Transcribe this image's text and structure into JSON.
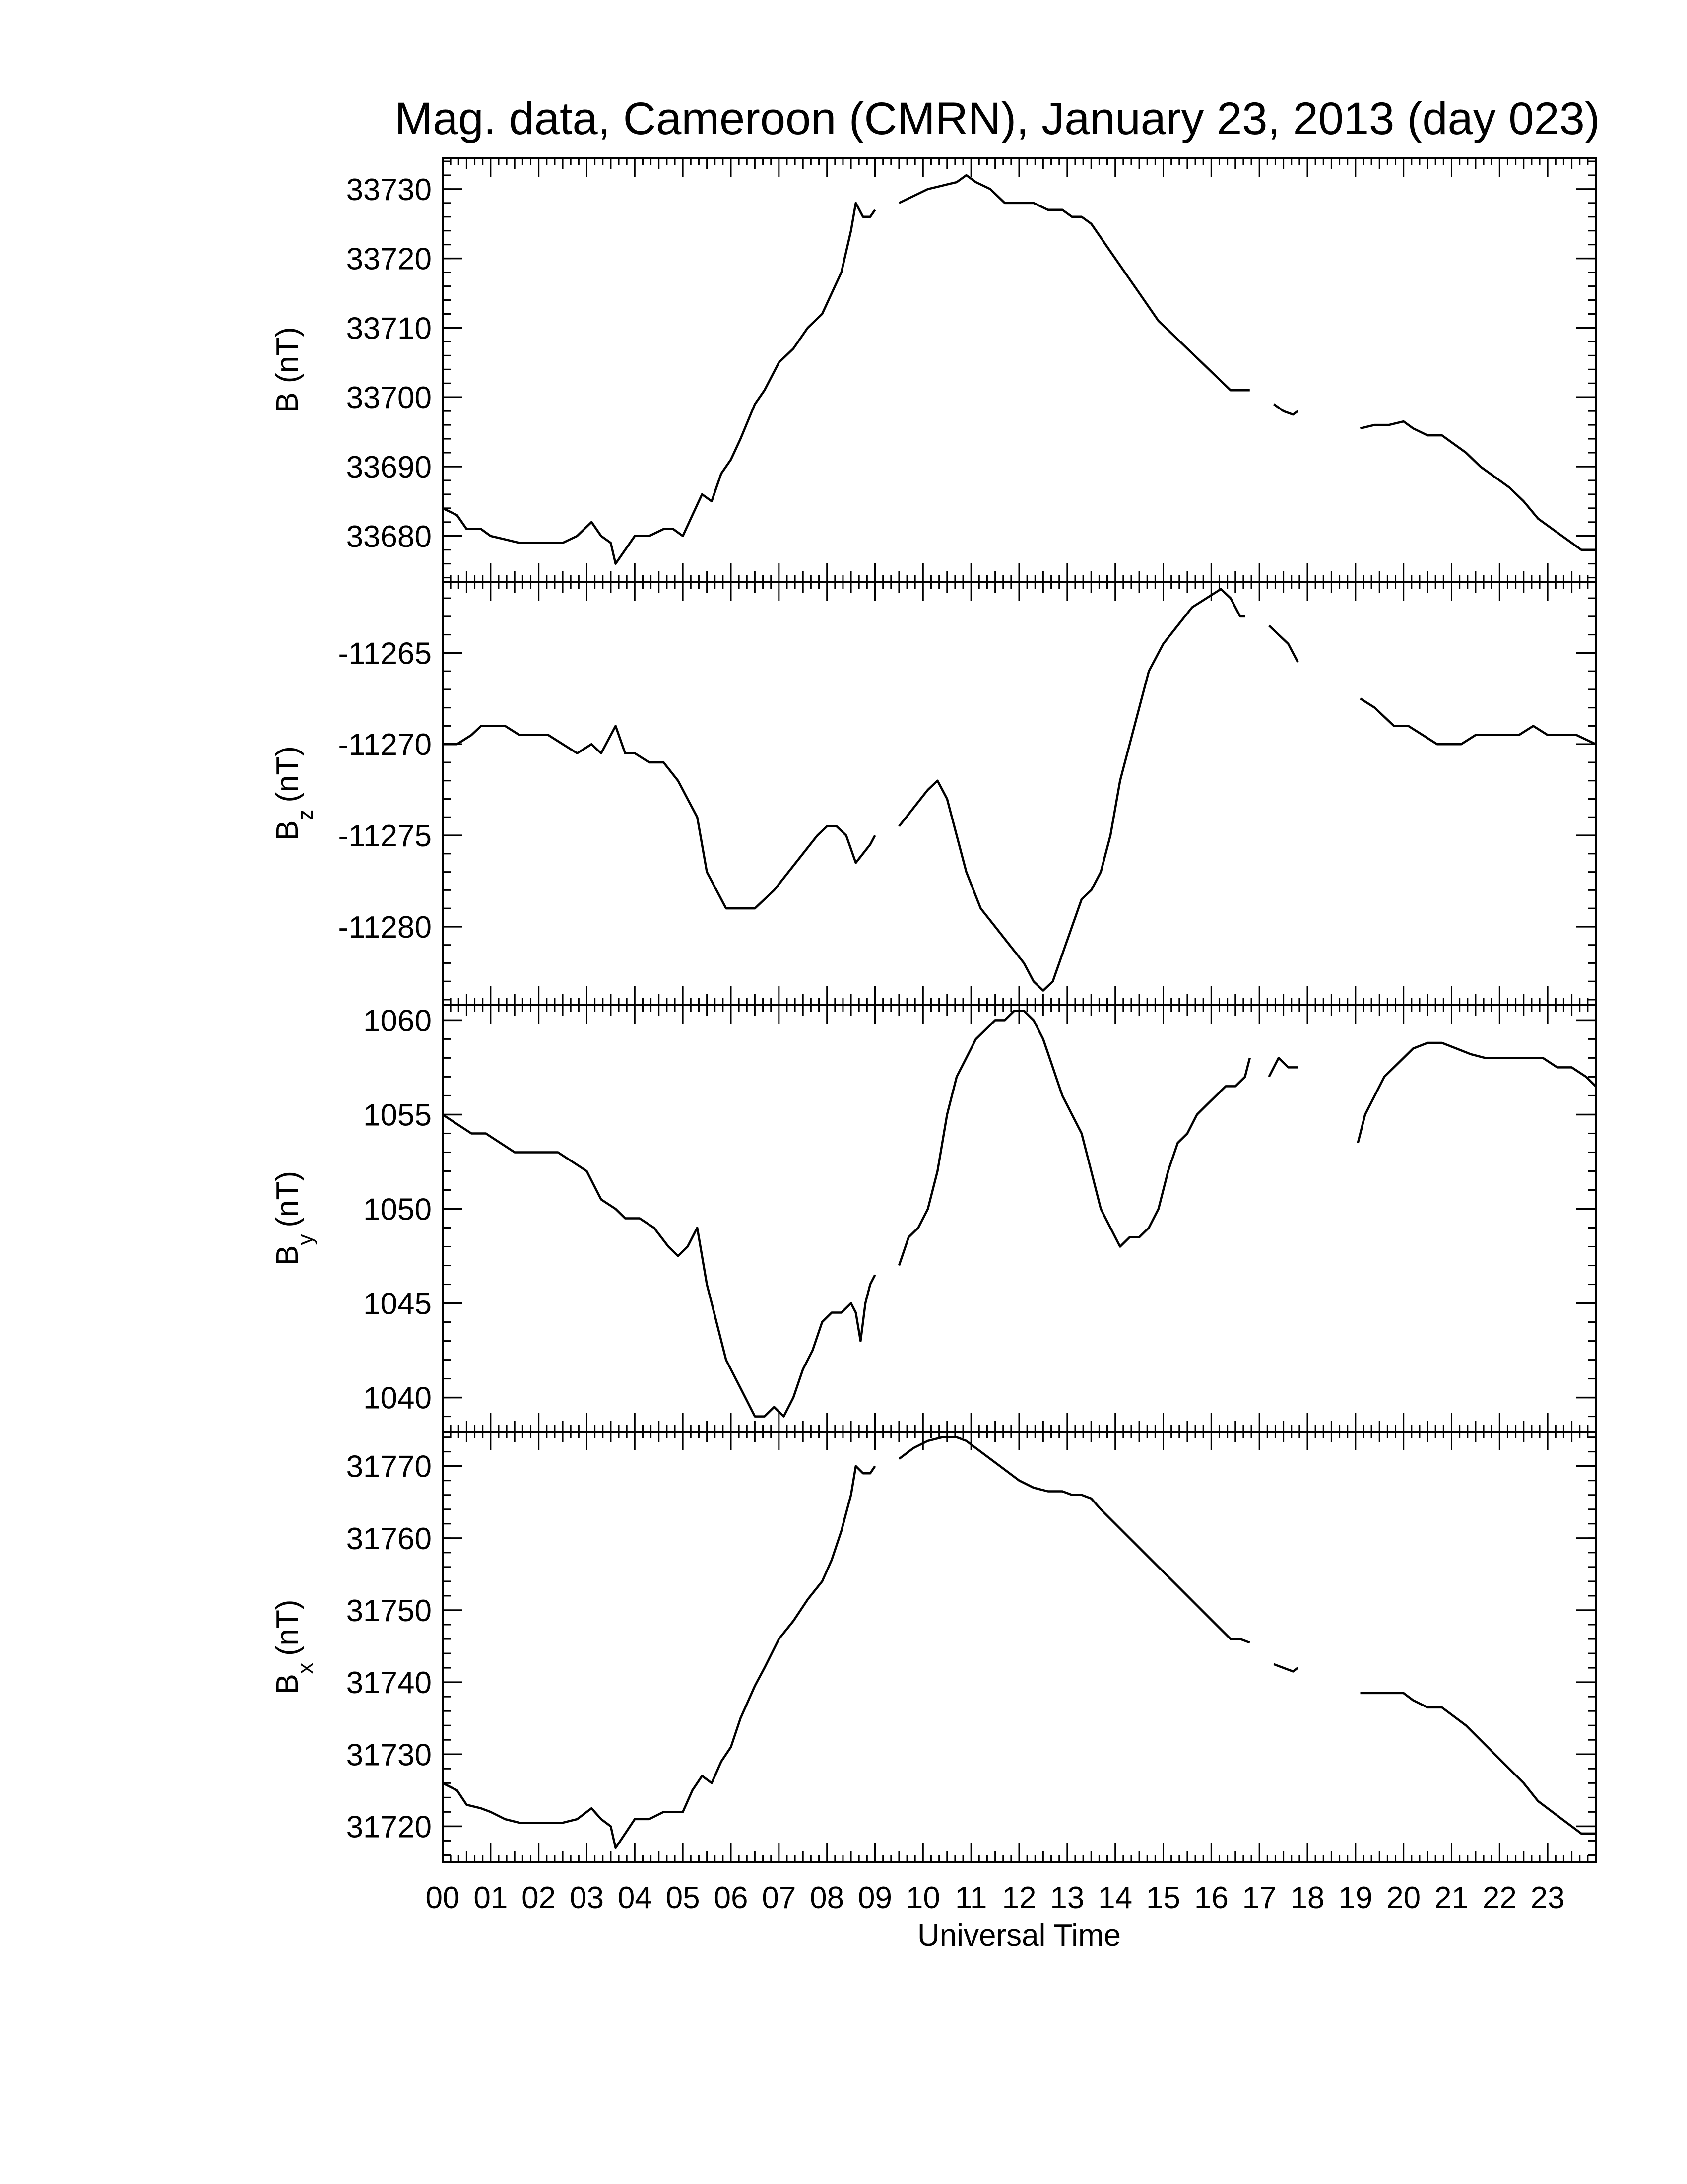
{
  "chart_data": {
    "type": "line",
    "title": "Mag. data, Cameroon (CMRN), January 23, 2013 (day 023)",
    "xlabel": "Universal Time",
    "x_ticks": [
      "00",
      "01",
      "02",
      "03",
      "04",
      "05",
      "06",
      "07",
      "08",
      "09",
      "10",
      "11",
      "12",
      "13",
      "14",
      "15",
      "16",
      "17",
      "18",
      "19",
      "20",
      "21",
      "22",
      "23"
    ],
    "xlim": [
      0,
      24
    ],
    "x_unit": "hours UT",
    "grid": false,
    "legend": "none",
    "panels": [
      {
        "ylabel_main": "B",
        "ylabel_sub": "",
        "ylabel_unit": "(nT)",
        "ylim": [
          33673.4,
          33734.5
        ],
        "y_ticks": [
          33680,
          33690,
          33700,
          33710,
          33720,
          33730
        ],
        "series": [
          {
            "x": [
              0,
              0.3,
              0.5,
              0.8,
              1.0,
              1.3,
              1.6,
              1.9,
              2.2,
              2.5,
              2.8,
              3.1,
              3.3,
              3.5,
              3.6,
              3.8,
              4.0,
              4.3,
              4.6,
              4.8,
              5.0,
              5.2,
              5.4,
              5.6,
              5.8,
              6.0,
              6.2,
              6.5,
              6.7,
              7.0,
              7.3,
              7.6,
              7.9,
              8.1,
              8.3,
              8.5,
              8.6,
              8.75,
              8.9,
              9.0
            ],
            "y": [
              33684,
              33683,
              33681,
              33681,
              33680,
              33679.5,
              33679,
              33679,
              33679,
              33679,
              33680,
              33682,
              33680,
              33679,
              33676,
              33678,
              33680,
              33680,
              33681,
              33681,
              33680,
              33683,
              33686,
              33685,
              33689,
              33691,
              33694,
              33699,
              33701,
              33705,
              33707,
              33710,
              33712,
              33715,
              33718,
              33724,
              33728,
              33726,
              33726,
              33727
            ]
          },
          {
            "x": [
              9.5,
              9.8,
              10.1,
              10.4,
              10.7,
              10.9,
              11.1,
              11.4,
              11.7,
              12.0,
              12.3,
              12.6,
              12.9,
              13.1,
              13.3,
              13.5,
              13.7,
              14.0,
              14.3,
              14.6,
              14.9,
              15.2,
              15.5,
              15.8,
              16.1,
              16.4,
              16.6,
              16.8
            ],
            "y": [
              33728,
              33729,
              33730,
              33730.5,
              33731,
              33732,
              33731,
              33730,
              33728,
              33728,
              33728,
              33727,
              33727,
              33726,
              33726,
              33725,
              33723,
              33720,
              33717,
              33714,
              33711,
              33709,
              33707,
              33705,
              33703,
              33701,
              33701,
              33701
            ]
          },
          {
            "x": [
              17.3,
              17.5,
              17.7,
              17.8
            ],
            "y": [
              33699,
              33698,
              33697.5,
              33698
            ]
          },
          {
            "x": [
              19.1,
              19.4,
              19.7,
              20.0,
              20.2,
              20.5,
              20.8,
              21.0,
              21.3,
              21.6,
              21.9,
              22.2,
              22.5,
              22.8,
              23.1,
              23.4,
              23.7,
              24.0
            ],
            "y": [
              33695.5,
              33696,
              33696,
              33696.5,
              33695.5,
              33694.5,
              33694.5,
              33693.5,
              33692,
              33690,
              33688.5,
              33687,
              33685,
              33682.5,
              33681,
              33679.5,
              33678,
              33678
            ]
          }
        ]
      },
      {
        "ylabel_main": "B",
        "ylabel_sub": "z",
        "ylabel_unit": "(nT)",
        "ylim": [
          -11284.3,
          -11261.1
        ],
        "y_ticks": [
          -11265,
          -11270,
          -11275,
          -11280
        ],
        "series": [
          {
            "x": [
              0,
              0.3,
              0.6,
              0.8,
              1.0,
              1.3,
              1.6,
              1.9,
              2.2,
              2.5,
              2.8,
              3.1,
              3.3,
              3.6,
              3.8,
              4.0,
              4.3,
              4.6,
              4.9,
              5.1,
              5.3,
              5.5,
              5.7,
              5.9,
              6.2,
              6.5,
              6.7,
              6.9,
              7.2,
              7.5,
              7.8,
              8.0,
              8.2,
              8.4,
              8.6,
              8.75,
              8.9,
              9.0
            ],
            "y": [
              -11270,
              -11270,
              -11269.5,
              -11269,
              -11269,
              -11269,
              -11269.5,
              -11269.5,
              -11269.5,
              -11270,
              -11270.5,
              -11270,
              -11270.5,
              -11269,
              -11270.5,
              -11270.5,
              -11271,
              -11271,
              -11272,
              -11273,
              -11274,
              -11277,
              -11278,
              -11279,
              -11279,
              -11279,
              -11278.5,
              -11278,
              -11277,
              -11276,
              -11275,
              -11274.5,
              -11274.5,
              -11275,
              -11276.5,
              -11276,
              -11275.5,
              -11275
            ]
          },
          {
            "x": [
              9.5,
              9.8,
              10.1,
              10.3,
              10.5,
              10.7,
              10.9,
              11.2,
              11.5,
              11.8,
              12.1,
              12.3,
              12.5,
              12.7,
              12.9,
              13.1,
              13.3,
              13.5,
              13.7,
              13.9,
              14.1,
              14.4,
              14.7,
              15.0,
              15.3,
              15.6,
              15.9,
              16.2,
              16.4,
              16.5,
              16.6,
              16.7
            ],
            "y": [
              -11274.5,
              -11273.5,
              -11272.5,
              -11272,
              -11273,
              -11275,
              -11277,
              -11279,
              -11280,
              -11281,
              -11282,
              -11283,
              -11283.5,
              -11283,
              -11281.5,
              -11280,
              -11278.5,
              -11278,
              -11277,
              -11275,
              -11272,
              -11269,
              -11266,
              -11264.5,
              -11263.5,
              -11262.5,
              -11262,
              -11261.5,
              -11262,
              -11262.5,
              -11263,
              -11263
            ]
          },
          {
            "x": [
              17.2,
              17.4,
              17.6,
              17.8
            ],
            "y": [
              -11263.5,
              -11264,
              -11264.5,
              -11265.5
            ]
          },
          {
            "x": [
              19.1,
              19.4,
              19.6,
              19.8,
              20.1,
              20.4,
              20.7,
              20.9,
              21.2,
              21.5,
              21.8,
              22.1,
              22.4,
              22.7,
              23.0,
              23.3,
              23.6,
              24.0
            ],
            "y": [
              -11267.5,
              -11268,
              -11268.5,
              -11269,
              -11269,
              -11269.5,
              -11270,
              -11270,
              -11270,
              -11269.5,
              -11269.5,
              -11269.5,
              -11269.5,
              -11269,
              -11269.5,
              -11269.5,
              -11269.5,
              -11270
            ]
          }
        ]
      },
      {
        "ylabel_main": "B",
        "ylabel_sub": "y",
        "ylabel_unit": "(nT)",
        "ylim": [
          1038.2,
          1060.8
        ],
        "y_ticks": [
          1040,
          1045,
          1050,
          1055,
          1060
        ],
        "series": [
          {
            "x": [
              0,
              0.3,
              0.6,
              0.9,
              1.2,
              1.5,
              1.8,
              2.1,
              2.4,
              2.7,
              3.0,
              3.3,
              3.6,
              3.8,
              4.1,
              4.4,
              4.7,
              4.9,
              5.1,
              5.3,
              5.5,
              5.7,
              5.9,
              6.1,
              6.3,
              6.5,
              6.7,
              6.9,
              7.1,
              7.3,
              7.5,
              7.7,
              7.9,
              8.1,
              8.3,
              8.5,
              8.6,
              8.7,
              8.8,
              8.9,
              9.0
            ],
            "y": [
              1055,
              1054.5,
              1054,
              1054,
              1053.5,
              1053,
              1053,
              1053,
              1053,
              1052.5,
              1052,
              1050.5,
              1050,
              1049.5,
              1049.5,
              1049,
              1048,
              1047.5,
              1048,
              1049,
              1046,
              1044,
              1042,
              1041,
              1040,
              1039,
              1039,
              1039.5,
              1039,
              1040,
              1041.5,
              1042.5,
              1044,
              1044.5,
              1044.5,
              1045,
              1044.5,
              1043,
              1045,
              1046,
              1046.5
            ]
          },
          {
            "x": [
              9.5,
              9.7,
              9.9,
              10.1,
              10.3,
              10.5,
              10.7,
              10.9,
              11.1,
              11.3,
              11.5,
              11.7,
              11.9,
              12.1,
              12.3,
              12.5,
              12.7,
              12.9,
              13.1,
              13.3,
              13.5,
              13.7,
              13.9,
              14.1,
              14.3,
              14.5,
              14.7,
              14.9,
              15.1,
              15.3,
              15.5,
              15.7,
              15.9,
              16.1,
              16.3,
              16.5,
              16.7,
              16.8
            ],
            "y": [
              1047,
              1048.5,
              1049,
              1050,
              1052,
              1055,
              1057,
              1058,
              1059,
              1059.5,
              1060,
              1060,
              1060.5,
              1060.5,
              1060,
              1059,
              1057.5,
              1056,
              1055,
              1054,
              1052,
              1050,
              1049,
              1048,
              1048.5,
              1048.5,
              1049,
              1050,
              1052,
              1053.5,
              1054,
              1055,
              1055.5,
              1056,
              1056.5,
              1056.5,
              1057,
              1058
            ]
          },
          {
            "x": [
              17.2,
              17.4,
              17.6,
              17.8
            ],
            "y": [
              1057,
              1058,
              1057.5,
              1057.5
            ]
          },
          {
            "x": [
              19.05,
              19.2,
              19.4,
              19.6,
              19.8,
              20.0,
              20.2,
              20.5,
              20.8,
              21.1,
              21.4,
              21.7,
              22.0,
              22.3,
              22.6,
              22.9,
              23.2,
              23.5,
              23.8,
              24.0
            ],
            "y": [
              1053.5,
              1055,
              1056,
              1057,
              1057.5,
              1058,
              1058.5,
              1058.8,
              1058.8,
              1058.5,
              1058.2,
              1058,
              1058,
              1058,
              1058,
              1058,
              1057.5,
              1057.5,
              1057,
              1056.5
            ]
          }
        ]
      },
      {
        "ylabel_main": "B",
        "ylabel_sub": "x",
        "ylabel_unit": "(nT)",
        "ylim": [
          31715,
          31774.8
        ],
        "y_ticks": [
          31720,
          31730,
          31740,
          31750,
          31760,
          31770
        ],
        "series": [
          {
            "x": [
              0,
              0.3,
              0.5,
              0.8,
              1.0,
              1.3,
              1.6,
              1.9,
              2.2,
              2.5,
              2.8,
              3.1,
              3.3,
              3.5,
              3.6,
              3.8,
              4.0,
              4.3,
              4.6,
              4.8,
              5.0,
              5.2,
              5.4,
              5.6,
              5.8,
              6.0,
              6.2,
              6.5,
              6.7,
              7.0,
              7.3,
              7.6,
              7.9,
              8.1,
              8.3,
              8.5,
              8.6,
              8.75,
              8.9,
              9.0
            ],
            "y": [
              31726,
              31725,
              31723,
              31722.5,
              31722,
              31721,
              31720.5,
              31720.5,
              31720.5,
              31720.5,
              31721,
              31722.5,
              31721,
              31720,
              31717,
              31719,
              31721,
              31721,
              31722,
              31722,
              31722,
              31725,
              31727,
              31726,
              31729,
              31731,
              31735,
              31739.5,
              31742,
              31746,
              31748.5,
              31751.5,
              31754,
              31757,
              31761,
              31766,
              31770,
              31769,
              31769,
              31770
            ]
          },
          {
            "x": [
              9.5,
              9.8,
              10.1,
              10.4,
              10.7,
              10.9,
              11.1,
              11.4,
              11.7,
              12.0,
              12.3,
              12.6,
              12.9,
              13.1,
              13.3,
              13.5,
              13.7,
              14.0,
              14.3,
              14.6,
              14.9,
              15.2,
              15.5,
              15.8,
              16.1,
              16.4,
              16.6,
              16.8
            ],
            "y": [
              31771,
              31772.5,
              31773.5,
              31774,
              31774,
              31773.5,
              31772.5,
              31771,
              31769.5,
              31768,
              31767,
              31766.5,
              31766.5,
              31766,
              31766,
              31765.5,
              31764,
              31762,
              31760,
              31758,
              31756,
              31754,
              31752,
              31750,
              31748,
              31746,
              31746,
              31745.5
            ]
          },
          {
            "x": [
              17.3,
              17.5,
              17.7,
              17.8
            ],
            "y": [
              31742.5,
              31742,
              31741.5,
              31742
            ]
          },
          {
            "x": [
              19.1,
              19.4,
              19.7,
              20.0,
              20.2,
              20.5,
              20.8,
              21.0,
              21.3,
              21.6,
              21.9,
              22.2,
              22.5,
              22.8,
              23.1,
              23.4,
              23.7,
              24.0
            ],
            "y": [
              31738.5,
              31738.5,
              31738.5,
              31738.5,
              31737.5,
              31736.5,
              31736.5,
              31735.5,
              31734,
              31732,
              31730,
              31728,
              31726,
              31723.5,
              31722,
              31720.5,
              31719,
              31719
            ]
          }
        ]
      }
    ]
  }
}
